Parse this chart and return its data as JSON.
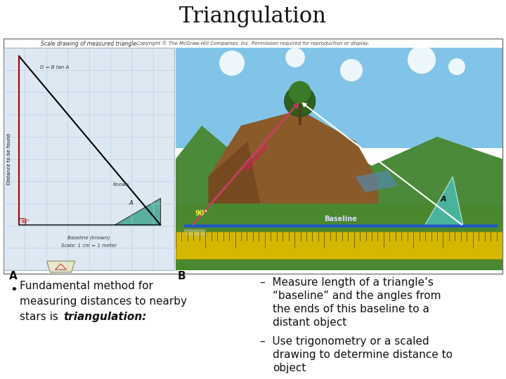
{
  "title": "Triangulation",
  "title_fontsize": 22,
  "title_font": "serif",
  "background_color": "#ffffff",
  "copyright_text": "Copyright © The McGraw-Hill Companies, Inc. Permission required for reproduction or display.",
  "copyright_fontsize": 5,
  "bullet_fontsize": 11,
  "dash_fontsize": 11,
  "dash_items_lines": [
    [
      "–  Measure length of a triangle’s",
      "“baseline” and the angles from",
      "the ends of this baseline to a",
      "distant object"
    ],
    [
      "–  Use trigonometry or a scaled",
      "drawing to determine distance to",
      "object"
    ]
  ]
}
